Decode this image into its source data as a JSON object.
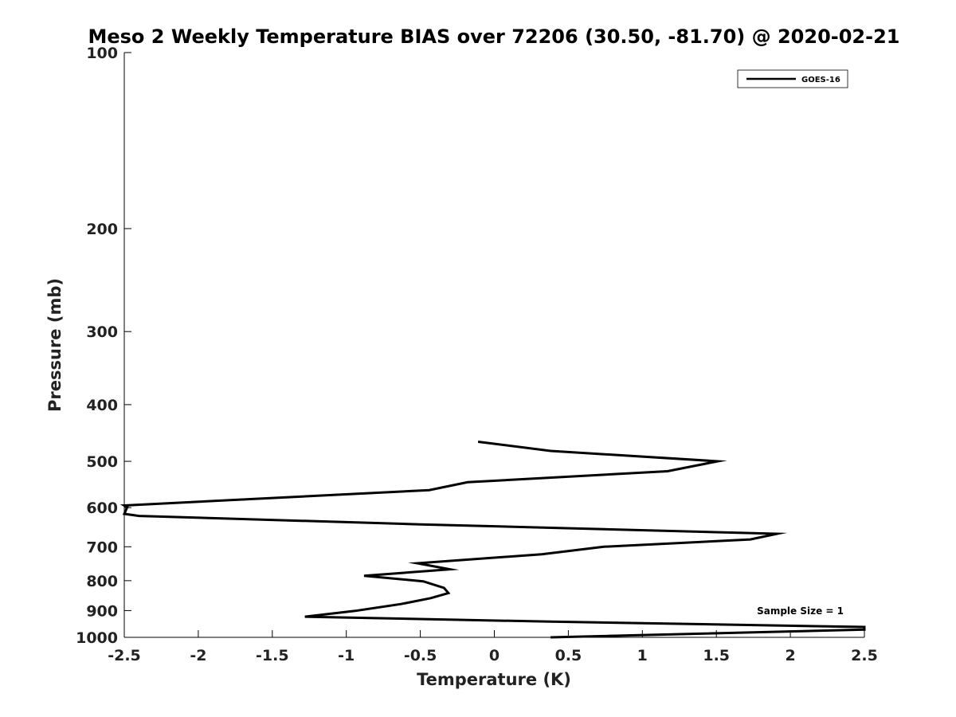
{
  "chart_data": {
    "type": "line",
    "title": "Meso 2 Weekly Temperature BIAS over 72206 (30.50, -81.70) @ 2020-02-21",
    "xlabel": "Temperature (K)",
    "ylabel": "Pressure (mb)",
    "xlim": [
      -2.5,
      2.5
    ],
    "ylim": [
      1000,
      100
    ],
    "y_scale": "log",
    "x_ticks": [
      -2.5,
      -2,
      -1.5,
      -1,
      -0.5,
      0,
      0.5,
      1,
      1.5,
      2,
      2.5
    ],
    "x_tick_labels": [
      "-2.5",
      "-2",
      "-1.5",
      "-1",
      "-0.5",
      "0",
      "0.5",
      "1",
      "1.5",
      "2",
      "2.5"
    ],
    "y_ticks": [
      100,
      200,
      300,
      400,
      500,
      600,
      700,
      800,
      900,
      1000
    ],
    "y_tick_labels": [
      "100",
      "200",
      "300",
      "400",
      "500",
      "600",
      "700",
      "800",
      "900",
      "1000"
    ],
    "grid": false,
    "legend_position": "top-right",
    "series": [
      {
        "name": "GOES-16",
        "color": "#000000",
        "points": [
          {
            "x": -0.11,
            "p": 463
          },
          {
            "x": 0.38,
            "p": 480
          },
          {
            "x": 1.51,
            "p": 500
          },
          {
            "x": 1.17,
            "p": 520
          },
          {
            "x": -0.18,
            "p": 543
          },
          {
            "x": -0.44,
            "p": 560
          },
          {
            "x": -2.5,
            "p": 595
          },
          {
            "x": -2.48,
            "p": 599
          },
          {
            "x": -2.5,
            "p": 615
          },
          {
            "x": -2.4,
            "p": 620
          },
          {
            "x": -0.5,
            "p": 641
          },
          {
            "x": 1.91,
            "p": 665
          },
          {
            "x": 1.73,
            "p": 680
          },
          {
            "x": 0.74,
            "p": 700
          },
          {
            "x": 0.32,
            "p": 721
          },
          {
            "x": -0.52,
            "p": 747
          },
          {
            "x": -0.3,
            "p": 765
          },
          {
            "x": -0.88,
            "p": 785
          },
          {
            "x": -0.48,
            "p": 802
          },
          {
            "x": -0.34,
            "p": 823
          },
          {
            "x": -0.31,
            "p": 840
          },
          {
            "x": -0.43,
            "p": 857
          },
          {
            "x": -0.63,
            "p": 877
          },
          {
            "x": -0.94,
            "p": 901
          },
          {
            "x": -1.28,
            "p": 922
          },
          {
            "x": 0.38,
            "p": 940
          },
          {
            "x": 2.5,
            "p": 960
          },
          {
            "x": 2.5,
            "p": 970
          },
          {
            "x": 0.38,
            "p": 1000
          }
        ]
      }
    ],
    "annotations": [
      "Sample Size = 1"
    ]
  }
}
